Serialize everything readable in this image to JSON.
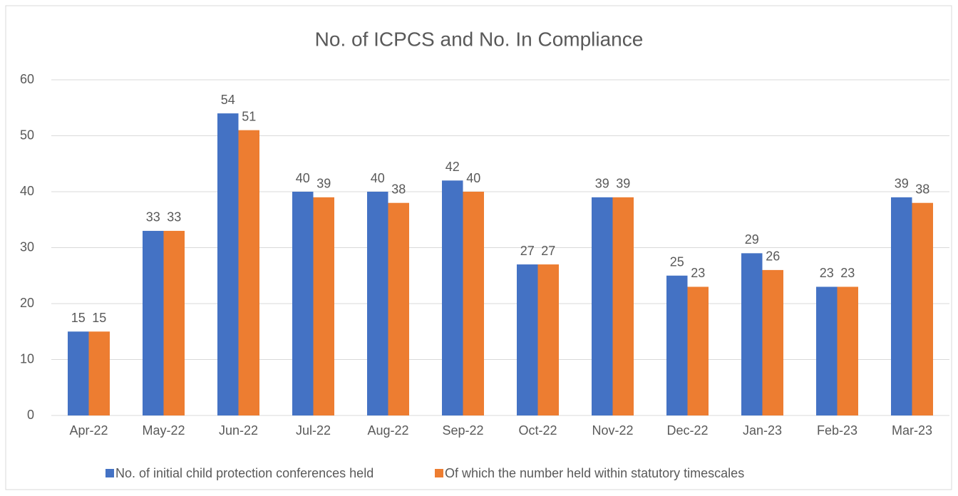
{
  "chart_data": {
    "type": "bar",
    "title": "No. of ICPCS and No. In Compliance",
    "categories": [
      "Apr-22",
      "May-22",
      "Jun-22",
      "Jul-22",
      "Aug-22",
      "Sep-22",
      "Oct-22",
      "Nov-22",
      "Dec-22",
      "Jan-23",
      "Feb-23",
      "Mar-23"
    ],
    "series": [
      {
        "name": "No. of initial child protection conferences held",
        "color": "#4472c4",
        "values": [
          15,
          33,
          54,
          40,
          40,
          42,
          27,
          39,
          25,
          29,
          23,
          39
        ]
      },
      {
        "name": "Of which the number held within statutory timescales",
        "color": "#ed7d31",
        "values": [
          15,
          33,
          51,
          39,
          38,
          40,
          27,
          39,
          23,
          26,
          23,
          38
        ]
      }
    ],
    "ylim": [
      0,
      60
    ],
    "yticks": [
      0,
      10,
      20,
      30,
      40,
      50,
      60
    ],
    "grid": true,
    "legend": "bottom"
  }
}
